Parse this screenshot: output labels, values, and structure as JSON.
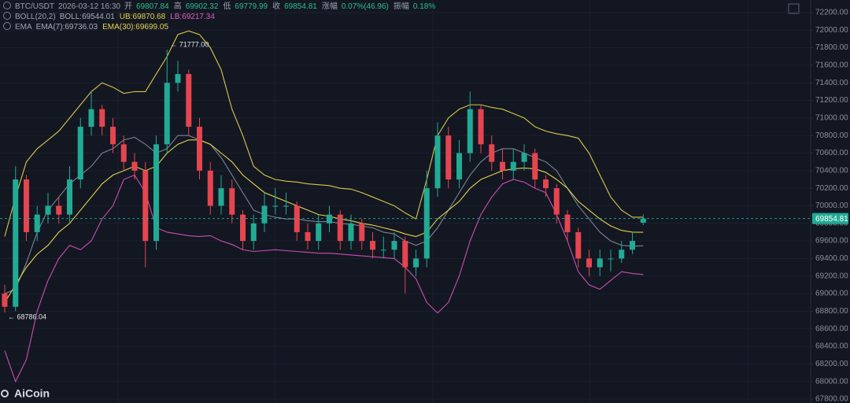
{
  "chart_data": {
    "type": "candlestick",
    "header": {
      "symbol": "BTC/USDT",
      "time": "2026-03-12 16:30",
      "fields": [
        {
          "label": "开",
          "path": "open"
        },
        {
          "label": "高",
          "path": "high"
        },
        {
          "label": "低",
          "path": "low"
        },
        {
          "label": "收",
          "path": "close"
        }
      ],
      "change": {
        "label": "涨幅",
        "text": "0.07%(46.96)"
      },
      "amplitude": {
        "label": "振幅",
        "text": "0.18%"
      }
    },
    "indicators": [
      {
        "name": "BOLL(20,2)",
        "items": [
          {
            "label": "BOLL:",
            "value": 69544.01,
            "color": "#a9aebb"
          },
          {
            "label": "UB:",
            "value": 69870.68,
            "color": "#e8d44d"
          },
          {
            "label": "LB:",
            "value": 69217.34,
            "color": "#e05fc4"
          }
        ]
      },
      {
        "name": "EMA",
        "items": [
          {
            "label": "EMA(7):",
            "value": 69736.03,
            "color": "#a9aebb"
          },
          {
            "label": "EMA(30):",
            "value": 69699.05,
            "color": "#e8d44d"
          }
        ]
      }
    ],
    "annotations": [
      {
        "label": "← 71777.00",
        "value": 71777.0,
        "index": 15
      },
      {
        "label": "← 68786.04",
        "value": 68786.04,
        "index": 0
      }
    ],
    "watermark": "AiCoin",
    "up_color": "#22ab94",
    "down_color": "#e5454f",
    "open": [
      69000,
      68850,
      70300,
      69700,
      69900,
      70000,
      69900,
      70300,
      70900,
      71100,
      70900,
      70700,
      70500,
      70400,
      69600,
      70700,
      71400,
      71500,
      70900,
      70400,
      70000,
      70200,
      69900,
      69600,
      69800,
      70000,
      70000,
      70000,
      69700,
      69600,
      69800,
      69900,
      69600,
      69800,
      69600,
      69500,
      69500,
      69600,
      69300,
      69400,
      70200,
      70800,
      70300,
      70600,
      71100,
      70700,
      70500,
      70400,
      70500,
      70600,
      70300,
      70200,
      69900,
      69700,
      69400,
      69300,
      69400,
      69400,
      69500,
      69807.84
    ],
    "high": [
      69100,
      70450,
      70350,
      70000,
      70150,
      70100,
      70450,
      71000,
      71300,
      71150,
      71000,
      70800,
      70600,
      70500,
      70800,
      71777,
      71650,
      71550,
      71000,
      70500,
      70350,
      70300,
      69950,
      69900,
      70150,
      70200,
      70150,
      70050,
      69800,
      69900,
      70000,
      69950,
      69900,
      69850,
      69700,
      69650,
      69700,
      69650,
      69500,
      70400,
      70950,
      70900,
      70750,
      71300,
      71150,
      70800,
      70650,
      70650,
      70700,
      70650,
      70350,
      70250,
      69950,
      69750,
      69500,
      69500,
      69500,
      69600,
      69700,
      69902.32
    ],
    "low": [
      68786.04,
      68800,
      69600,
      69600,
      69800,
      69800,
      69800,
      70200,
      70800,
      70800,
      70600,
      70400,
      70300,
      69300,
      69500,
      70600,
      71300,
      70800,
      70300,
      69900,
      69900,
      69800,
      69500,
      69500,
      69700,
      69900,
      69900,
      69600,
      69500,
      69500,
      69700,
      69500,
      69500,
      69500,
      69400,
      69400,
      69400,
      69000,
      69200,
      69300,
      70100,
      70200,
      70200,
      70500,
      70600,
      70400,
      70300,
      70300,
      70400,
      70200,
      70100,
      69800,
      69600,
      69300,
      69200,
      69200,
      69250,
      69350,
      69450,
      69779.99
    ],
    "close": [
      68850,
      70300,
      69700,
      69900,
      70000,
      69900,
      70300,
      70900,
      71100,
      70900,
      70700,
      70500,
      70400,
      69600,
      70700,
      71400,
      71500,
      70900,
      70400,
      70000,
      70200,
      69900,
      69600,
      69800,
      70000,
      70000,
      70000,
      69700,
      69600,
      69800,
      69900,
      69600,
      69800,
      69600,
      69500,
      69500,
      69600,
      69300,
      69400,
      70200,
      70800,
      70300,
      70600,
      71100,
      70700,
      70500,
      70400,
      70500,
      70600,
      70300,
      70200,
      69900,
      69700,
      69400,
      69300,
      69400,
      69400,
      69500,
      69600,
      69854.81
    ],
    "series": [
      {
        "color": "#d9c84a",
        "values": [
          69650,
          70100,
          70500,
          70650,
          70750,
          70850,
          71000,
          71150,
          71300,
          71400,
          71350,
          71280,
          71300,
          71300,
          71500,
          71700,
          71950,
          71990,
          71950,
          71800,
          71550,
          71100,
          70800,
          70450,
          70350,
          70300,
          70280,
          70270,
          70250,
          70240,
          70230,
          70200,
          70190,
          70150,
          70100,
          70050,
          70000,
          69920,
          69850,
          70300,
          70800,
          71000,
          71100,
          71150,
          71150,
          71120,
          71100,
          71050,
          71000,
          70900,
          70850,
          70820,
          70800,
          70770,
          70600,
          70350,
          70100,
          69950,
          69870,
          69870.68
        ]
      },
      {
        "color": "#7d8394",
        "values": [
          69000,
          69050,
          69350,
          69700,
          69950,
          70100,
          70250,
          70350,
          70450,
          70600,
          70650,
          70750,
          70780,
          70700,
          70600,
          70650,
          70800,
          70800,
          70750,
          70700,
          70550,
          70350,
          70150,
          69950,
          69900,
          69870,
          69850,
          69850,
          69830,
          69820,
          69820,
          69800,
          69790,
          69770,
          69750,
          69700,
          69680,
          69600,
          69550,
          69600,
          69750,
          69950,
          70150,
          70350,
          70500,
          70600,
          70650,
          70650,
          70600,
          70550,
          70500,
          70400,
          70200,
          70000,
          69850,
          69700,
          69600,
          69550,
          69540,
          69544.01
        ]
      },
      {
        "color": "#c94fb0",
        "values": [
          68350,
          68000,
          68250,
          68800,
          69150,
          69400,
          69550,
          69500,
          69600,
          69850,
          70000,
          70300,
          70350,
          70150,
          69750,
          69700,
          69680,
          69660,
          69650,
          69660,
          69600,
          69560,
          69500,
          69480,
          69490,
          69500,
          69490,
          69480,
          69470,
          69460,
          69460,
          69450,
          69440,
          69430,
          69420,
          69410,
          69400,
          69300,
          69170,
          68900,
          68780,
          68900,
          69200,
          69600,
          69900,
          70100,
          70250,
          70300,
          70270,
          70200,
          70150,
          69900,
          69600,
          69250,
          69100,
          69050,
          69150,
          69250,
          69230,
          69217.34
        ]
      },
      {
        "color": "#e3d34a",
        "values": [
          68900,
          69100,
          69300,
          69450,
          69550,
          69700,
          69800,
          69950,
          70100,
          70250,
          70350,
          70400,
          70450,
          70400,
          70450,
          70600,
          70700,
          70750,
          70750,
          70700,
          70600,
          70500,
          70350,
          70250,
          70150,
          70100,
          70050,
          70000,
          69950,
          69900,
          69880,
          69850,
          69830,
          69800,
          69780,
          69750,
          69720,
          69680,
          69650,
          69700,
          69850,
          69950,
          70050,
          70200,
          70300,
          70350,
          70400,
          70420,
          70430,
          70420,
          70380,
          70300,
          70200,
          70050,
          69950,
          69850,
          69770,
          69720,
          69700,
          69699.05
        ]
      }
    ],
    "ylim": [
      67755,
      72343
    ],
    "yticks": [
      {
        "value": 67800,
        "label": "67800.00"
      },
      {
        "value": 68000,
        "label": "68000.00"
      },
      {
        "value": 68200,
        "label": "68200.00"
      },
      {
        "value": 68400,
        "label": "68400.00"
      },
      {
        "value": 68600,
        "label": "68600.00"
      },
      {
        "value": 68800,
        "label": "68800.00"
      },
      {
        "value": 69000,
        "label": "69000.00"
      },
      {
        "value": 69200,
        "label": "69200.00"
      },
      {
        "value": 69400,
        "label": "69400.00"
      },
      {
        "value": 69600,
        "label": "69600.00"
      },
      {
        "value": 69800,
        "label": "69800.00"
      },
      {
        "value": 70000,
        "label": "70000.00"
      },
      {
        "value": 70200,
        "label": "70200.00"
      },
      {
        "value": 70400,
        "label": "70400.00"
      },
      {
        "value": 70600,
        "label": "70600.00"
      },
      {
        "value": 70800,
        "label": "70800.00"
      },
      {
        "value": 71000,
        "label": "71000.00"
      },
      {
        "value": 71200,
        "label": "71200.00"
      },
      {
        "value": 71400,
        "label": "71400.00"
      },
      {
        "value": 71600,
        "label": "71600.00"
      },
      {
        "value": 71800,
        "label": "71800.00"
      },
      {
        "value": 72000,
        "label": "72000.00"
      },
      {
        "value": 72200,
        "label": "72200.00"
      }
    ],
    "grid": true
  }
}
